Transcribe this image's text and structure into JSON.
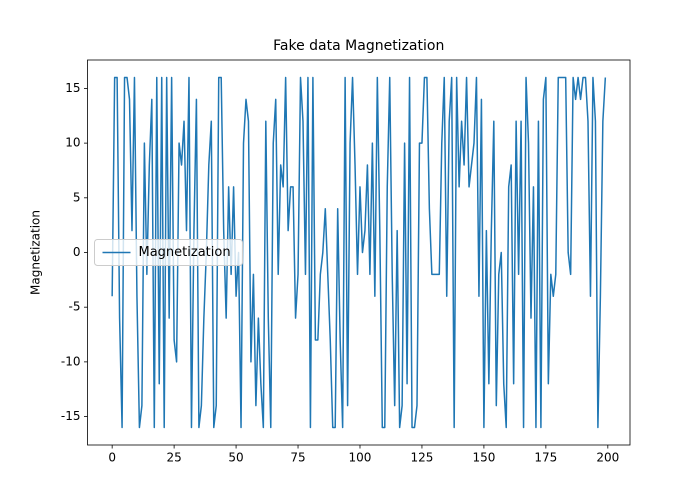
{
  "chart_data": {
    "type": "line",
    "title": "Fake data Magnetization",
    "ylabel": "Magnetization",
    "x": [
      0,
      1,
      2,
      3,
      4,
      5,
      6,
      7,
      8,
      9,
      10,
      11,
      12,
      13,
      14,
      15,
      16,
      17,
      18,
      19,
      20,
      21,
      22,
      23,
      24,
      25,
      26,
      27,
      28,
      29,
      30,
      31,
      32,
      33,
      34,
      35,
      36,
      37,
      38,
      39,
      40,
      41,
      42,
      43,
      44,
      45,
      46,
      47,
      48,
      49,
      50,
      51,
      52,
      53,
      54,
      55,
      56,
      57,
      58,
      59,
      60,
      61,
      62,
      63,
      64,
      65,
      66,
      67,
      68,
      69,
      70,
      71,
      72,
      73,
      74,
      75,
      76,
      77,
      78,
      79,
      80,
      81,
      82,
      83,
      84,
      85,
      86,
      87,
      88,
      89,
      90,
      91,
      92,
      93,
      94,
      95,
      96,
      97,
      98,
      99,
      100,
      101,
      102,
      103,
      104,
      105,
      106,
      107,
      108,
      109,
      110,
      111,
      112,
      113,
      114,
      115,
      116,
      117,
      118,
      119,
      120,
      121,
      122,
      123,
      124,
      125,
      126,
      127,
      128,
      129,
      130,
      131,
      132,
      133,
      134,
      135,
      136,
      137,
      138,
      139,
      140,
      141,
      142,
      143,
      144,
      145,
      146,
      147,
      148,
      149,
      150,
      151,
      152,
      153,
      154,
      155,
      156,
      157,
      158,
      159,
      160,
      161,
      162,
      163,
      164,
      165,
      166,
      167,
      168,
      169,
      170,
      171,
      172,
      173,
      174,
      175,
      176,
      177,
      178,
      179,
      180,
      181,
      182,
      183,
      184,
      185,
      186,
      187,
      188,
      189,
      190,
      191,
      192,
      193,
      194,
      195,
      196,
      197,
      198,
      199
    ],
    "series": [
      {
        "name": "Magnetization",
        "color": "#1f77b4",
        "values": [
          -4,
          16,
          16,
          -6,
          -16,
          16,
          16,
          14,
          2,
          16,
          -4,
          -16,
          -14,
          10,
          -2,
          8,
          14,
          -16,
          16,
          -12,
          16,
          -16,
          16,
          -6,
          16,
          -8,
          -10,
          10,
          8,
          12,
          2,
          16,
          -16,
          2,
          14,
          -16,
          -14,
          -6,
          0,
          8,
          12,
          -16,
          -14,
          16,
          16,
          2,
          -6,
          6,
          -2,
          6,
          -4,
          0,
          -16,
          10,
          14,
          12,
          -10,
          -2,
          -14,
          -6,
          -12,
          -16,
          12,
          -6,
          -16,
          10,
          14,
          -2,
          8,
          6,
          16,
          2,
          6,
          6,
          -6,
          -2,
          16,
          12,
          -2,
          16,
          -16,
          16,
          -8,
          -8,
          -2,
          0,
          4,
          -2,
          -8,
          -16,
          -16,
          4,
          -8,
          -16,
          16,
          -14,
          10,
          16,
          8,
          -2,
          6,
          0,
          2,
          8,
          -2,
          10,
          -4,
          16,
          2,
          -16,
          -16,
          6,
          16,
          -2,
          -14,
          2,
          -16,
          -14,
          10,
          -12,
          16,
          -16,
          -16,
          -14,
          10,
          10,
          16,
          16,
          4,
          -2,
          -2,
          -2,
          -2,
          10,
          16,
          -4,
          12,
          16,
          -16,
          16,
          6,
          12,
          8,
          16,
          6,
          8,
          10,
          16,
          -4,
          14,
          -16,
          2,
          -12,
          2,
          12,
          -14,
          -2,
          0,
          -12,
          -16,
          6,
          8,
          -12,
          12,
          -2,
          12,
          -16,
          16,
          10,
          -6,
          6,
          -16,
          12,
          -16,
          14,
          16,
          -12,
          -2,
          -4,
          -2,
          16,
          16,
          16,
          16,
          0,
          -2,
          16,
          14,
          16,
          14,
          16,
          16,
          12,
          -4,
          16,
          12,
          -16,
          -4,
          12,
          16
        ]
      }
    ],
    "xlim": [
      -9.95,
      208.95
    ],
    "ylim": [
      -17.6,
      17.6
    ],
    "xticks": [
      0,
      25,
      50,
      75,
      100,
      125,
      150,
      175,
      200
    ],
    "yticks": [
      -15,
      -10,
      -5,
      0,
      5,
      10,
      15
    ],
    "legend": "center left"
  }
}
